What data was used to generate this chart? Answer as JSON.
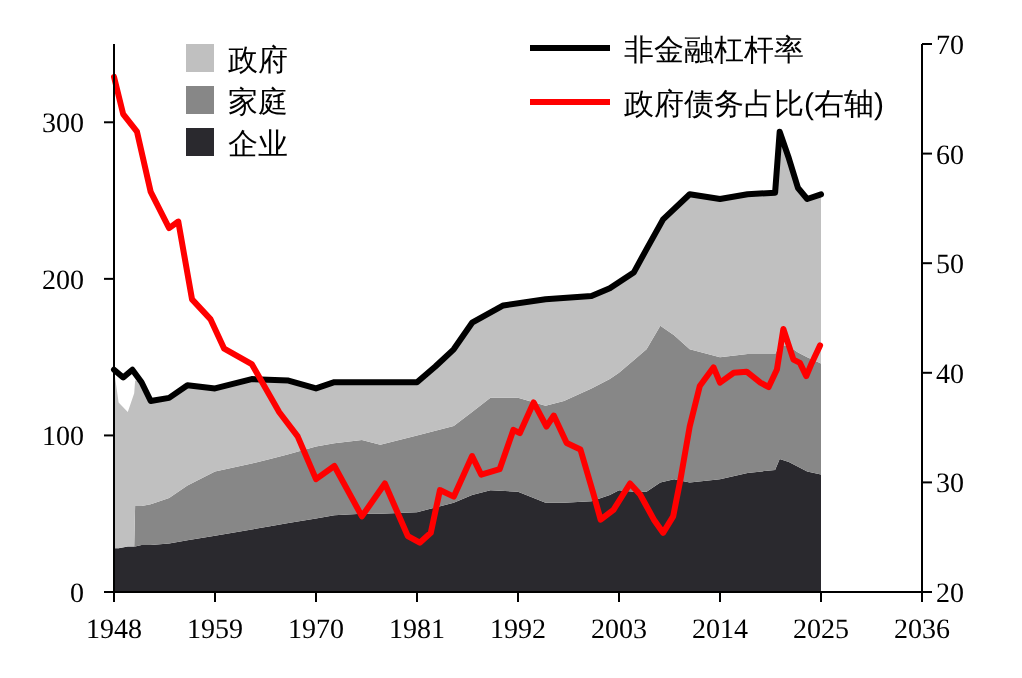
{
  "chart_data": {
    "type": "area",
    "stacked": true,
    "x": [
      1948,
      1948.5,
      1949.5,
      1950.2,
      1950.3,
      1951,
      1952,
      1954,
      1956,
      1959,
      1963,
      1965,
      1967,
      1970,
      1972,
      1975,
      1977,
      1981,
      1983,
      1985,
      1987,
      1989,
      1992,
      1995,
      1997,
      2000,
      2002,
      2003,
      2004.6,
      2006,
      2007.5,
      2009,
      2010.7,
      2014,
      2017,
      2020,
      2020.5,
      2021.5,
      2022.5,
      2023.5,
      2025
    ],
    "series": [
      {
        "name": "企业",
        "color": "#2a292e",
        "values": [
          28,
          28,
          29,
          29,
          29,
          30,
          30,
          31,
          33,
          36,
          40,
          42,
          44,
          47,
          49,
          50,
          50,
          51,
          54,
          57,
          62,
          65,
          64,
          57,
          57,
          58,
          62,
          65,
          64,
          64,
          70,
          72,
          70,
          72,
          76,
          78,
          85,
          83,
          80,
          77,
          75
        ]
      },
      {
        "name": "家庭",
        "color": "#878787",
        "values": [
          0,
          0,
          0,
          0,
          26,
          25,
          26,
          29,
          35,
          41,
          42,
          43,
          44,
          46,
          46,
          47,
          44,
          49,
          49,
          49,
          53,
          59,
          60,
          62,
          65,
          72,
          74,
          75,
          84,
          91,
          100,
          92,
          85,
          78,
          76,
          74,
          73,
          74,
          73,
          73,
          71
        ]
      },
      {
        "name": "政府",
        "color": "#c0c0c0",
        "values": [
          114,
          93,
          86,
          98,
          80,
          79,
          66,
          64,
          64,
          53,
          54,
          50,
          46,
          37,
          39,
          37,
          40,
          34,
          41,
          49,
          57,
          56,
          61,
          68,
          66,
          59,
          58,
          58,
          56,
          64,
          64,
          81,
          99,
          101,
          102,
          103,
          136,
          120,
          105,
          101,
          108
        ]
      },
      {
        "name": "非金融杠杆率",
        "type": "line",
        "color": "#000000",
        "x": [
          1948,
          1949,
          1950,
          1951,
          1952,
          1954,
          1956,
          1959,
          1963,
          1967,
          1970,
          1972,
          1981,
          1983,
          1985,
          1987,
          1990.4,
          1995,
          2000,
          2002,
          2004.6,
          2006,
          2007.8,
          2010.7,
          2014,
          2017,
          2020,
          2020.5,
          2021.5,
          2022.5,
          2023.5,
          2025
        ],
        "values": [
          142,
          137,
          142,
          134,
          122,
          124,
          132,
          130,
          136,
          135,
          130,
          134,
          134,
          144,
          155,
          172,
          183,
          187,
          189,
          194,
          204,
          219,
          238,
          254,
          251,
          254,
          255,
          294,
          277,
          258,
          251,
          254
        ]
      },
      {
        "name": "政府债务占比(右轴)",
        "type": "line",
        "axis": "y2",
        "color": "#ff0000",
        "x": [
          1948,
          1949,
          1950.5,
          1952,
          1954,
          1955,
          1956.5,
          1958.5,
          1960,
          1963,
          1966,
          1968,
          1970,
          1972,
          1975,
          1977.5,
          1980,
          1981.3,
          1982.5,
          1983.5,
          1985,
          1987,
          1988,
          1990,
          1991.5,
          1992.2,
          1993.7,
          1995.1,
          1995.9,
          1997.3,
          1998.8,
          2000.2,
          2001,
          2002.4,
          2004.2,
          2005.3,
          2006.8,
          2007.8,
          2008.9,
          2009.7,
          2010.7,
          2011.8,
          2013.3,
          2014,
          2015.5,
          2016.9,
          2018.4,
          2019.3,
          2020.2,
          2020.9,
          2022,
          2022.7,
          2023.4,
          2024,
          2024.9
        ],
        "values": [
          67,
          63.6,
          62,
          56.5,
          53.2,
          53.8,
          46.7,
          44.9,
          42.2,
          40.8,
          36.4,
          34.2,
          30.3,
          31.5,
          26.9,
          29.9,
          25.1,
          24.5,
          25.4,
          29.3,
          28.7,
          32.4,
          30.7,
          31.2,
          34.8,
          34.5,
          37.3,
          35.1,
          36.1,
          33.6,
          33,
          29,
          26.6,
          27.5,
          29.9,
          28.9,
          26.6,
          25.4,
          26.9,
          30.3,
          35.1,
          38.8,
          40.5,
          39.1,
          40,
          40.1,
          39.1,
          38.7,
          40.3,
          44,
          41.2,
          40.9,
          39.7,
          40.9,
          42.5
        ]
      }
    ],
    "xlim": [
      1948,
      2036
    ],
    "xticks": [
      1948,
      1959,
      1970,
      1981,
      1992,
      2003,
      2014,
      2025,
      2036
    ],
    "ylim": [
      0,
      350
    ],
    "yticks": [
      0,
      100,
      200,
      300
    ],
    "y2lim": [
      20,
      70
    ],
    "y2ticks": [
      20,
      30,
      40,
      50,
      60,
      70
    ],
    "legend": "top"
  }
}
